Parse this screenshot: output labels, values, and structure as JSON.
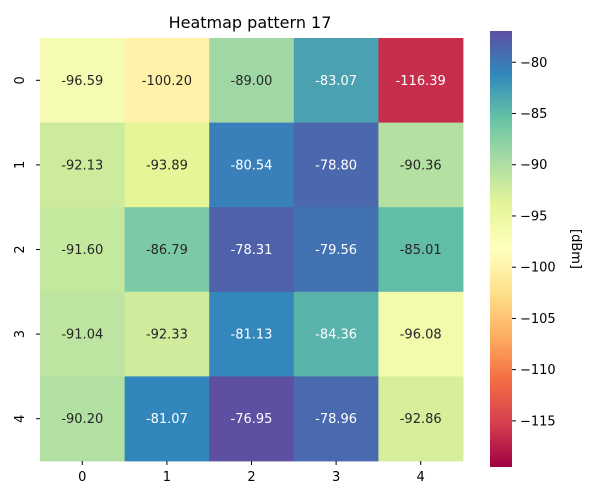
{
  "chart_data": {
    "type": "heatmap",
    "title": "Heatmap pattern 17",
    "x_categories": [
      "0",
      "1",
      "2",
      "3",
      "4"
    ],
    "y_categories": [
      "0",
      "1",
      "2",
      "3",
      "4"
    ],
    "values": [
      [
        -96.59,
        -100.2,
        -89.0,
        -83.07,
        -116.39
      ],
      [
        -92.13,
        -93.89,
        -80.54,
        -78.8,
        -90.36
      ],
      [
        -91.6,
        -86.79,
        -78.31,
        -79.56,
        -85.01
      ],
      [
        -91.04,
        -92.33,
        -81.13,
        -84.36,
        -96.08
      ],
      [
        -90.2,
        -81.07,
        -76.95,
        -78.96,
        -92.86
      ]
    ],
    "labels": [
      [
        "-96.59",
        "-100.20",
        "-89.00",
        "-83.07",
        "-116.39"
      ],
      [
        "-92.13",
        "-93.89",
        "-80.54",
        "-78.80",
        "-90.36"
      ],
      [
        "-91.60",
        "-86.79",
        "-78.31",
        "-79.56",
        "-85.01"
      ],
      [
        "-91.04",
        "-92.33",
        "-81.13",
        "-84.36",
        "-96.08"
      ],
      [
        "-90.20",
        "-81.07",
        "-76.95",
        "-78.96",
        "-92.86"
      ]
    ],
    "colorbar": {
      "label": "[dBm]",
      "min": -119.5,
      "max": -76.95,
      "ticks": [
        -80,
        -85,
        -90,
        -95,
        -100,
        -105,
        -110,
        -115
      ],
      "tick_labels": [
        "−80",
        "−85",
        "−90",
        "−95",
        "−100",
        "−105",
        "−110",
        "−115"
      ],
      "colormap": "Spectral"
    }
  }
}
